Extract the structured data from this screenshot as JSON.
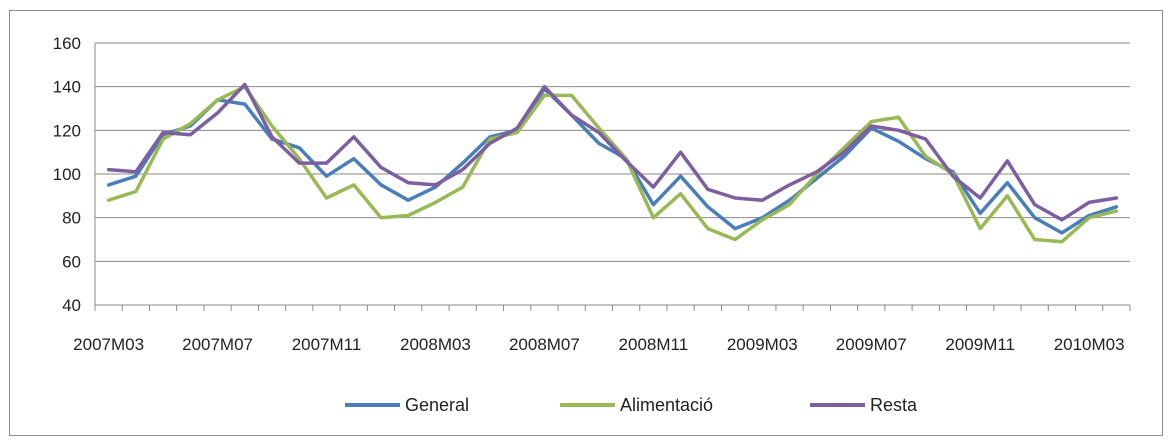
{
  "chart_data": {
    "type": "line",
    "title": "",
    "xlabel": "",
    "ylabel": "",
    "ylim": [
      40,
      160
    ],
    "y_ticks": [
      40,
      60,
      80,
      100,
      120,
      140,
      160
    ],
    "grid": true,
    "legend_position": "bottom",
    "x": [
      "2007M03",
      "2007M04",
      "2007M05",
      "2007M06",
      "2007M07",
      "2007M08",
      "2007M09",
      "2007M10",
      "2007M11",
      "2007M12",
      "2008M01",
      "2008M02",
      "2008M03",
      "2008M04",
      "2008M05",
      "2008M06",
      "2008M07",
      "2008M08",
      "2008M09",
      "2008M10",
      "2008M11",
      "2008M12",
      "2009M01",
      "2009M02",
      "2009M03",
      "2009M04",
      "2009M05",
      "2009M06",
      "2009M07",
      "2009M08",
      "2009M09",
      "2009M10",
      "2009M11",
      "2009M12",
      "2010M01",
      "2010M02",
      "2010M03",
      "2010M04"
    ],
    "x_tick_labels": [
      "2007M03",
      "2007M07",
      "2007M11",
      "2008M03",
      "2008M07",
      "2008M11",
      "2009M03",
      "2009M07",
      "2009M11",
      "2010M03"
    ],
    "series": [
      {
        "name": "General",
        "color": "#4a7ebb",
        "values": [
          95,
          99,
          118,
          122,
          134,
          132,
          116,
          112,
          99,
          107,
          95,
          88,
          94,
          105,
          117,
          120,
          139,
          127,
          114,
          107,
          86,
          99,
          85,
          75,
          80,
          88,
          98,
          108,
          121,
          115,
          107,
          101,
          82,
          96,
          80,
          73,
          81,
          85
        ]
      },
      {
        "name": "Alimentació",
        "color": "#98b954",
        "values": [
          88,
          92,
          116,
          123,
          134,
          140,
          122,
          107,
          89,
          95,
          80,
          81,
          87,
          94,
          116,
          119,
          136,
          136,
          121,
          107,
          80,
          91,
          75,
          70,
          79,
          86,
          100,
          112,
          124,
          126,
          108,
          100,
          75,
          90,
          70,
          69,
          80,
          83
        ]
      },
      {
        "name": "Resta",
        "color": "#7d5fa0",
        "values": [
          102,
          101,
          119,
          118,
          128,
          141,
          117,
          105,
          105,
          117,
          103,
          96,
          95,
          102,
          114,
          121,
          140,
          127,
          119,
          106,
          94,
          110,
          93,
          89,
          88,
          95,
          101,
          110,
          122,
          120,
          116,
          99,
          89,
          106,
          86,
          79,
          87,
          89
        ]
      }
    ]
  }
}
